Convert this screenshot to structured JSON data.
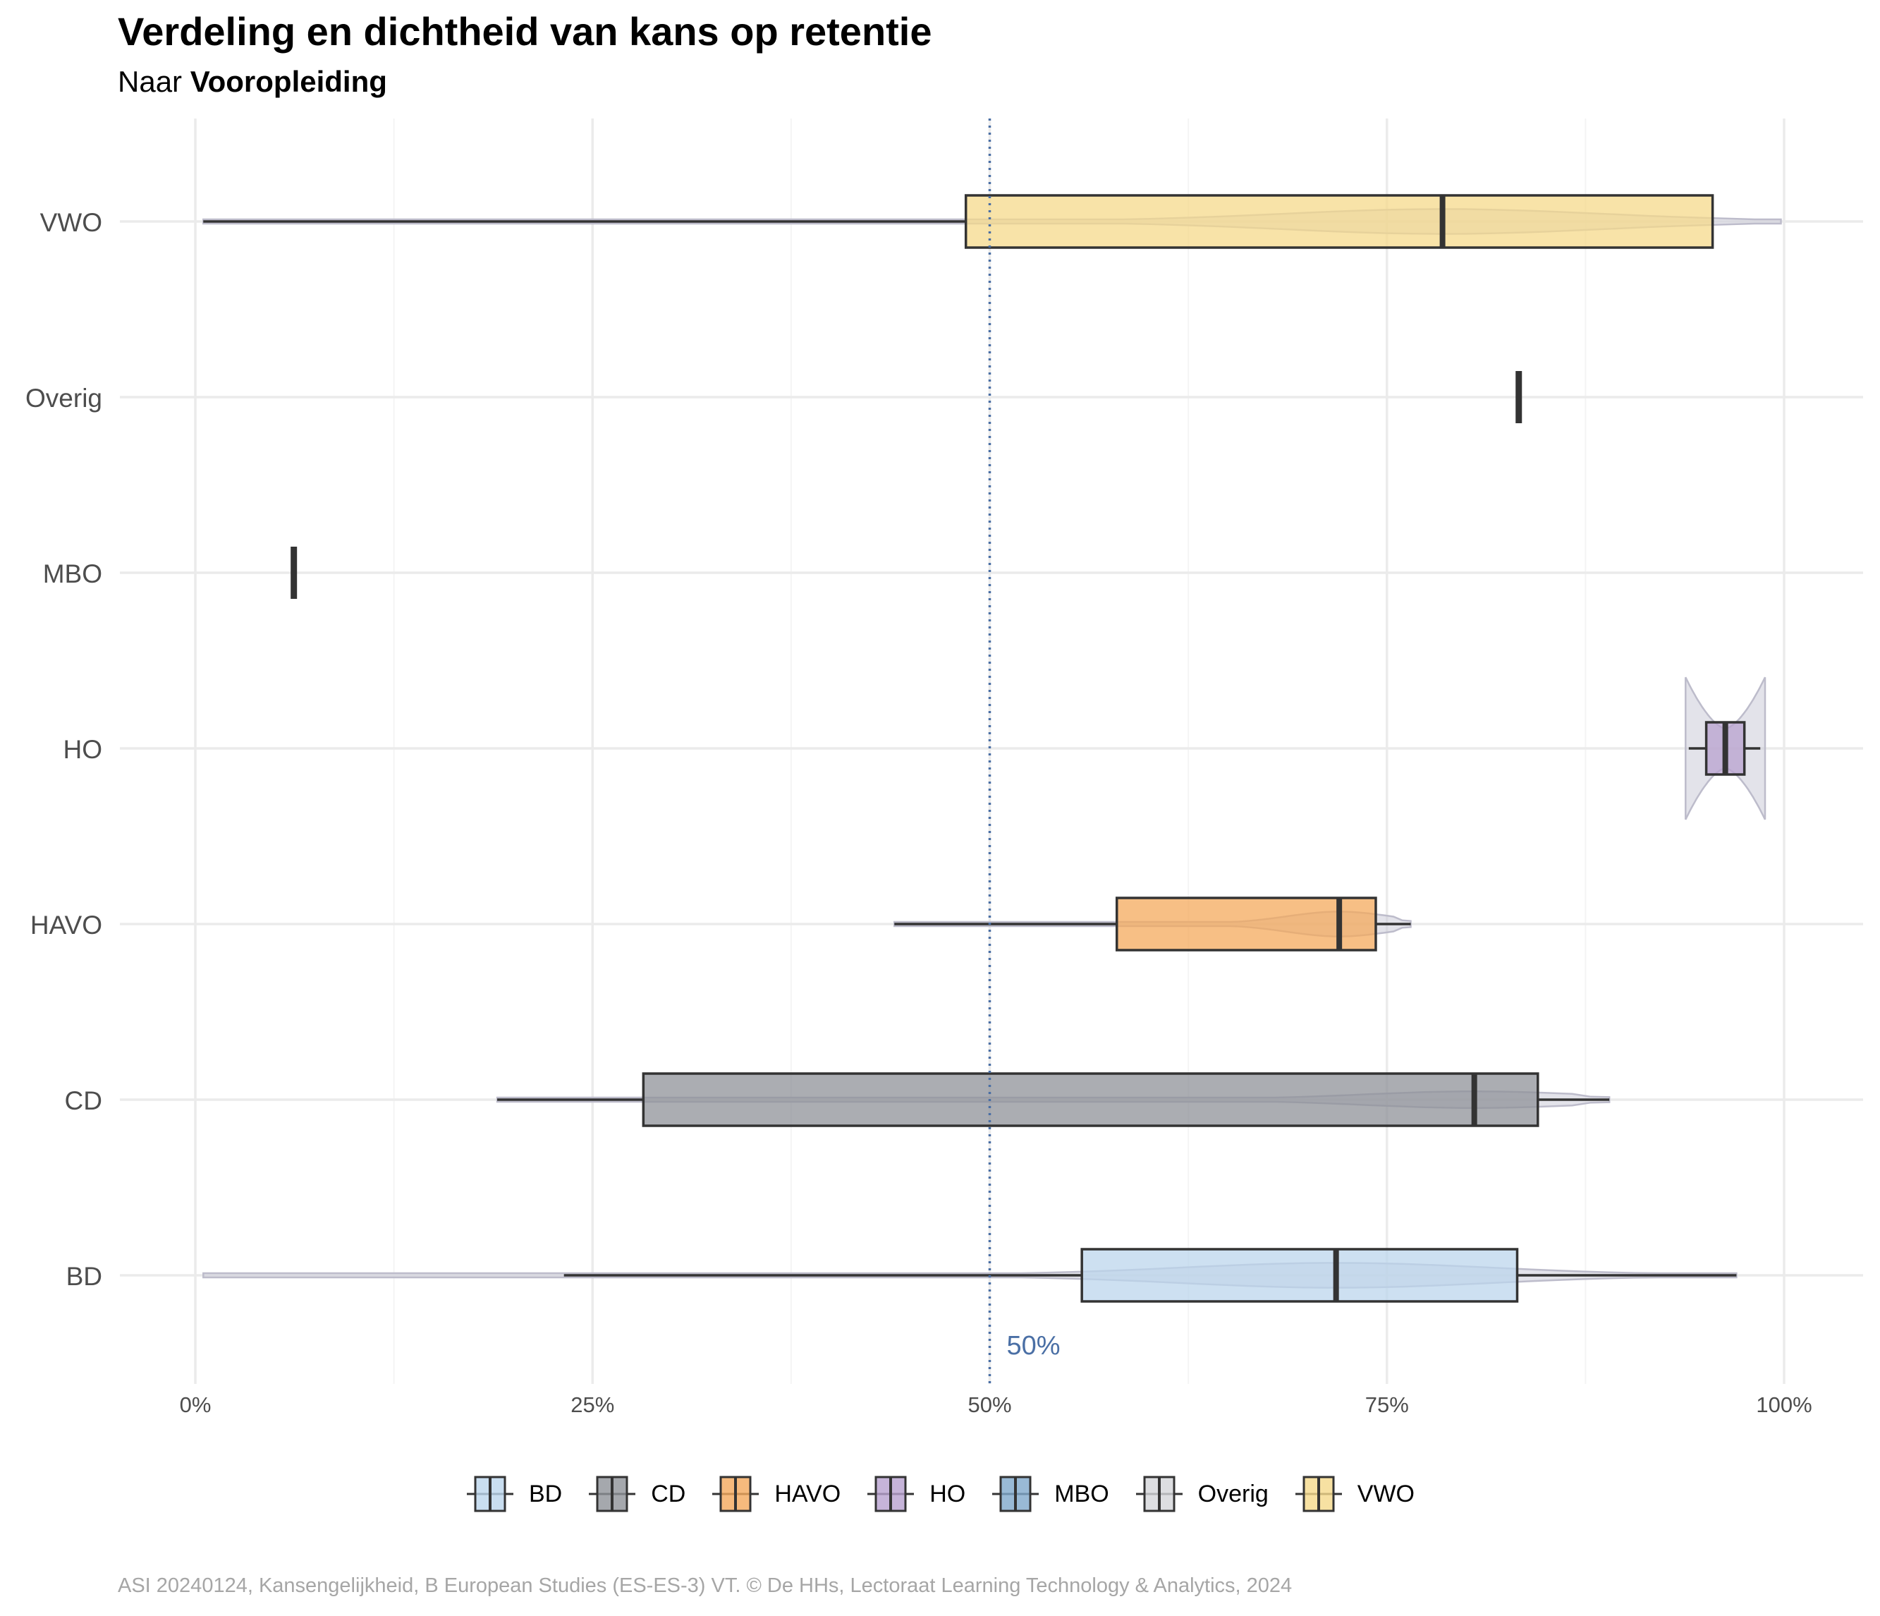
{
  "title": "Verdeling en dichtheid van kans op retentie",
  "subtitle_prefix": "Naar ",
  "subtitle_bold": "Vooropleiding",
  "caption": "ASI 20240124, Kansengelijkheid, B European Studies (ES-ES-3) VT. © De HHs, Lectoraat Learning Technology & Analytics, 2024",
  "chart_data": {
    "type": "boxplot-violin",
    "orientation": "horizontal",
    "xlim": [
      0,
      1
    ],
    "x_ticks": [
      0,
      0.25,
      0.5,
      0.75,
      1
    ],
    "x_tick_labels": [
      "0%",
      "25%",
      "50%",
      "75%",
      "100%"
    ],
    "reference_line": {
      "x": 0.5,
      "label": "50%",
      "color": "#4a6fa5"
    },
    "categories": [
      "VWO",
      "Overig",
      "MBO",
      "HO",
      "HAVO",
      "CD",
      "BD"
    ],
    "series": [
      {
        "name": "VWO",
        "color": "#f5d98b",
        "min": 0.005,
        "q1": 0.485,
        "median": 0.785,
        "q3": 0.955,
        "max": 0.955,
        "violin_min": 0.005,
        "violin_max": 0.998,
        "violin_width": 0.15
      },
      {
        "name": "Overig",
        "color": "#d4d6da",
        "min": 0.833,
        "q1": 0.833,
        "median": 0.833,
        "q3": 0.833,
        "max": 0.833
      },
      {
        "name": "MBO",
        "color": "#7fa9cc",
        "min": 0.062,
        "q1": 0.062,
        "median": 0.062,
        "q3": 0.062,
        "max": 0.062
      },
      {
        "name": "HO",
        "color": "#b8a1cf",
        "min": 0.94,
        "q1": 0.951,
        "median": 0.963,
        "q3": 0.975,
        "max": 0.985,
        "violin_min": 0.938,
        "violin_max": 0.988,
        "violin_width": 0.9
      },
      {
        "name": "HAVO",
        "color": "#f4a95c",
        "min": 0.44,
        "q1": 0.58,
        "median": 0.72,
        "q3": 0.743,
        "max": 0.765,
        "violin_min": 0.44,
        "violin_max": 0.765,
        "violin_width": 0.15
      },
      {
        "name": "CD",
        "color": "#8f9298",
        "min": 0.19,
        "q1": 0.282,
        "median": 0.805,
        "q3": 0.845,
        "max": 0.89,
        "violin_min": 0.19,
        "violin_max": 0.89,
        "violin_width": 0.1
      },
      {
        "name": "BD",
        "color": "#bcd6ec",
        "min": 0.232,
        "q1": 0.558,
        "median": 0.718,
        "q3": 0.832,
        "max": 0.97,
        "violin_min": 0.005,
        "violin_max": 0.97,
        "violin_width": 0.15
      }
    ],
    "legend": {
      "position": "bottom",
      "items": [
        {
          "name": "BD",
          "color": "#bcd6ec"
        },
        {
          "name": "CD",
          "color": "#8f9298"
        },
        {
          "name": "HAVO",
          "color": "#f4a95c"
        },
        {
          "name": "HO",
          "color": "#b8a1cf"
        },
        {
          "name": "MBO",
          "color": "#7fa9cc"
        },
        {
          "name": "Overig",
          "color": "#d4d6da"
        },
        {
          "name": "VWO",
          "color": "#f5d98b"
        }
      ]
    },
    "grid": true
  }
}
